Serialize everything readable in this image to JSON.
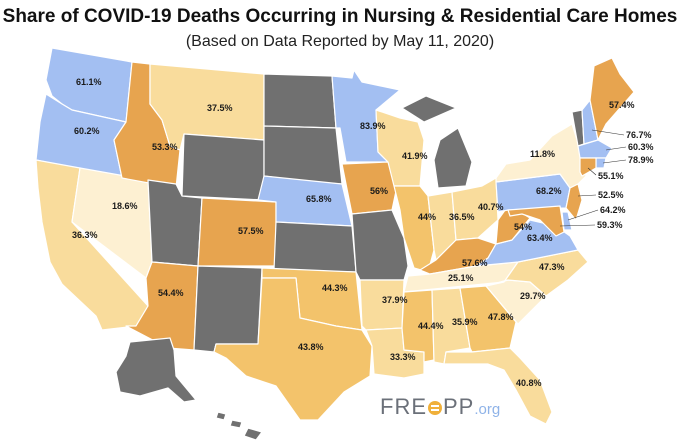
{
  "title": "Share of COVID-19 Deaths Occurring in Nursing & Residential Care Homes",
  "subtitle": "(Based on Data Reported by May 11, 2020)",
  "logo": {
    "part1": "FRE",
    "part2": "PP",
    "suffix": ".org"
  },
  "colors": {
    "blue": "#a3bff2",
    "light": "#fdf0d2",
    "mid": "#f9dc9c",
    "gold": "#f3c36b",
    "orange": "#e7a44f",
    "nodata": "#707070"
  },
  "states": [
    {
      "id": "WA",
      "value": "61.1%",
      "color": "blue"
    },
    {
      "id": "OR",
      "value": "60.2%",
      "color": "blue"
    },
    {
      "id": "CA",
      "value": "36.3%",
      "color": "mid"
    },
    {
      "id": "NV",
      "value": "18.6%",
      "color": "light"
    },
    {
      "id": "ID",
      "value": "53.3%",
      "color": "orange"
    },
    {
      "id": "MT",
      "value": "37.5%",
      "color": "mid"
    },
    {
      "id": "WY",
      "value": "",
      "color": "nodata"
    },
    {
      "id": "UT",
      "value": "",
      "color": "nodata"
    },
    {
      "id": "AZ",
      "value": "54.4%",
      "color": "orange"
    },
    {
      "id": "CO",
      "value": "57.5%",
      "color": "orange"
    },
    {
      "id": "NM",
      "value": "",
      "color": "nodata"
    },
    {
      "id": "ND",
      "value": "",
      "color": "nodata"
    },
    {
      "id": "SD",
      "value": "",
      "color": "nodata"
    },
    {
      "id": "NE",
      "value": "65.8%",
      "color": "blue"
    },
    {
      "id": "KS",
      "value": "",
      "color": "nodata"
    },
    {
      "id": "OK",
      "value": "44.3%",
      "color": "gold"
    },
    {
      "id": "TX",
      "value": "43.8%",
      "color": "gold"
    },
    {
      "id": "MN",
      "value": "83.9%",
      "color": "blue"
    },
    {
      "id": "IA",
      "value": "56%",
      "color": "orange"
    },
    {
      "id": "MO",
      "value": "",
      "color": "nodata"
    },
    {
      "id": "AR",
      "value": "37.9%",
      "color": "mid"
    },
    {
      "id": "LA",
      "value": "33.3%",
      "color": "mid"
    },
    {
      "id": "WI",
      "value": "41.9%",
      "color": "mid"
    },
    {
      "id": "MI",
      "value": "",
      "color": "nodata"
    },
    {
      "id": "IL",
      "value": "44%",
      "color": "gold"
    },
    {
      "id": "IN",
      "value": "36.5%",
      "color": "mid"
    },
    {
      "id": "OH",
      "value": "40.7%",
      "color": "mid"
    },
    {
      "id": "KY",
      "value": "57.6%",
      "color": "orange"
    },
    {
      "id": "TN",
      "value": "25.1%",
      "color": "light"
    },
    {
      "id": "MS",
      "value": "44.4%",
      "color": "gold"
    },
    {
      "id": "AL",
      "value": "35.9%",
      "color": "mid"
    },
    {
      "id": "GA",
      "value": "47.8%",
      "color": "gold"
    },
    {
      "id": "FL",
      "value": "40.8%",
      "color": "mid"
    },
    {
      "id": "SC",
      "value": "29.7%",
      "color": "light"
    },
    {
      "id": "NC",
      "value": "47.3%",
      "color": "mid"
    },
    {
      "id": "VA",
      "value": "63.4%",
      "color": "blue"
    },
    {
      "id": "WV",
      "value": "54%",
      "color": "orange"
    },
    {
      "id": "PA",
      "value": "68.2%",
      "color": "blue"
    },
    {
      "id": "NY",
      "value": "11.8%",
      "color": "light"
    },
    {
      "id": "VT",
      "value": "",
      "color": "nodata"
    },
    {
      "id": "NH",
      "value": "76.7%",
      "color": "blue"
    },
    {
      "id": "ME",
      "value": "57.4%",
      "color": "orange"
    },
    {
      "id": "MA",
      "value": "60.3%",
      "color": "blue"
    },
    {
      "id": "RI",
      "value": "78.9%",
      "color": "blue"
    },
    {
      "id": "CT",
      "value": "55.1%",
      "color": "orange"
    },
    {
      "id": "NJ",
      "value": "52.5%",
      "color": "orange"
    },
    {
      "id": "DE",
      "value": "64.2%",
      "color": "blue"
    },
    {
      "id": "MD",
      "value": "59.3%",
      "color": "orange"
    },
    {
      "id": "AK",
      "value": "",
      "color": "nodata"
    },
    {
      "id": "HI",
      "value": "",
      "color": "nodata"
    }
  ]
}
